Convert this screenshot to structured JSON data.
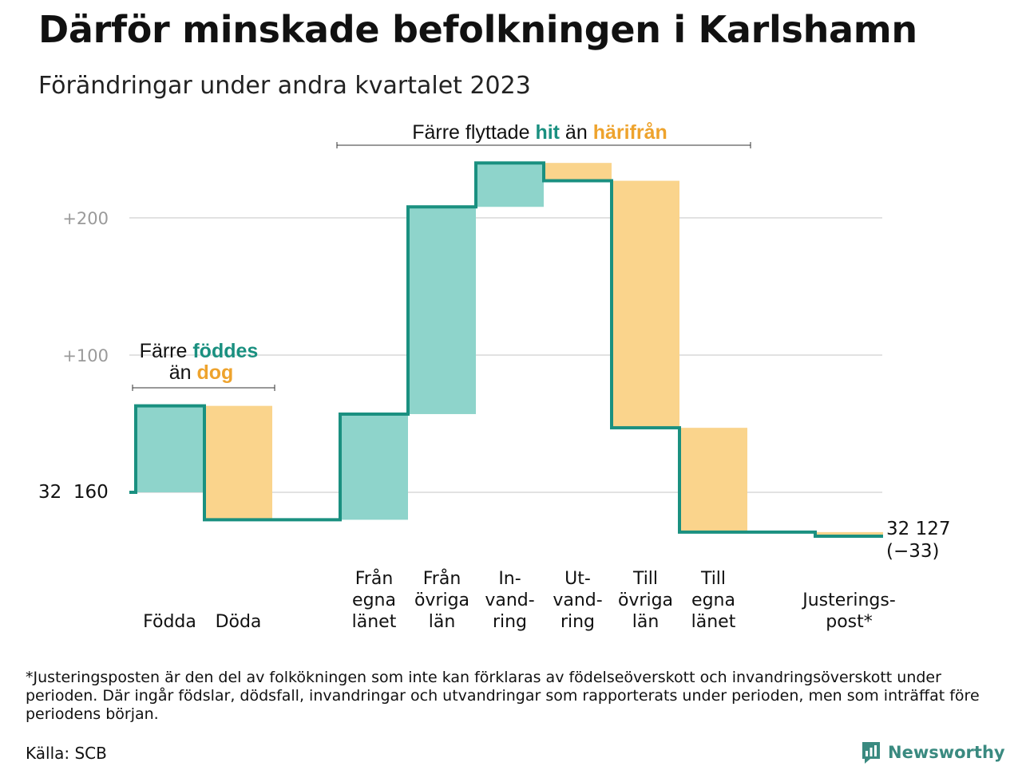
{
  "title": "Därför minskade befolkningen i Karlshamn",
  "subtitle": "Förändringar under andra kvartalet 2023",
  "footnote": "*Justeringsposten är den del av folkökningen som inte kan förklaras av födelseöverskott och invandringsöverskott under perioden. Där ingår födslar, dödsfall, invandringar och utvandringar som rapporterats under perioden, men som inträffat före periodens början.",
  "source": "Källa: SCB",
  "brand": "Newsworthy",
  "colors": {
    "increase": "#8ed4cb",
    "decrease": "#fad48c",
    "line": "#1a9080",
    "grid": "#e2e2e2",
    "hit": "#1a9080",
    "harifran": "#eea32d"
  },
  "annotations": {
    "births": {
      "line1_pre": "Färre ",
      "line1_em": "föddes",
      "line2_pre": "än ",
      "line2_em": "dog"
    },
    "migration": {
      "pre": "Färre flyttade ",
      "em1": "hit",
      "mid": " än ",
      "em2": "härifrån"
    }
  },
  "chart_data": {
    "type": "waterfall",
    "start": {
      "label": "32  160",
      "value": 32160
    },
    "end": {
      "label": "32 127",
      "change_label": "(−33)",
      "value": 32127
    },
    "y_ticks": [
      {
        "value": 200,
        "label": "+200"
      },
      {
        "value": 100,
        "label": "+100"
      }
    ],
    "grid": true,
    "ylim": [
      -35,
      265
    ],
    "steps": [
      {
        "lines": [
          "Födda"
        ],
        "change": 63,
        "kind": "increase"
      },
      {
        "lines": [
          "Döda"
        ],
        "change": -83,
        "kind": "decrease"
      },
      {
        "lines": [
          "Från",
          "egna",
          "länet"
        ],
        "change": 77,
        "kind": "increase"
      },
      {
        "lines": [
          "Från",
          "övriga",
          "län"
        ],
        "change": 151,
        "kind": "increase"
      },
      {
        "lines": [
          "In-",
          "vand-",
          "ring"
        ],
        "change": 32,
        "kind": "increase"
      },
      {
        "lines": [
          "Ut-",
          "vand-",
          "ring"
        ],
        "change": -13,
        "kind": "decrease"
      },
      {
        "lines": [
          "Till",
          "övriga",
          "län"
        ],
        "change": -180,
        "kind": "decrease"
      },
      {
        "lines": [
          "Till",
          "egna",
          "länet"
        ],
        "change": -76,
        "kind": "decrease"
      },
      {
        "lines": [
          "Justerings-",
          "post*"
        ],
        "change": -3,
        "kind": "decrease"
      }
    ]
  }
}
